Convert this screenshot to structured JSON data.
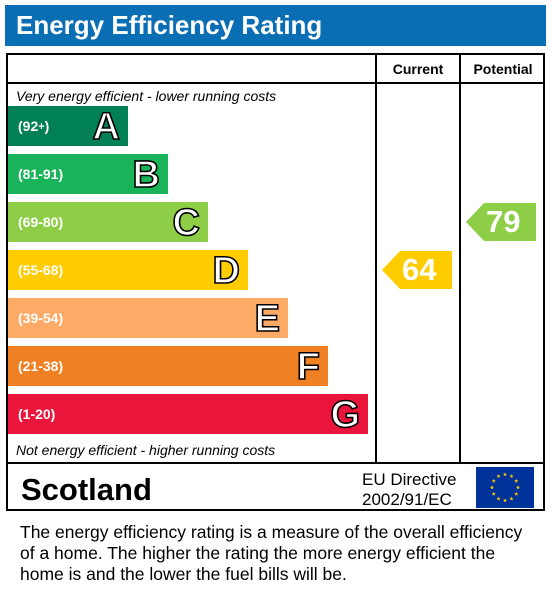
{
  "chart_data": {
    "type": "bar",
    "title": "Energy Efficiency Rating",
    "columns": [
      "Current",
      "Potential"
    ],
    "top_caption": "Very energy efficient - lower running costs",
    "bottom_caption": "Not energy efficient - higher running costs",
    "bands": [
      {
        "letter": "A",
        "range": "(92+)",
        "color": "#008054"
      },
      {
        "letter": "B",
        "range": "(81-91)",
        "color": "#19b459"
      },
      {
        "letter": "C",
        "range": "(69-80)",
        "color": "#8dce46"
      },
      {
        "letter": "D",
        "range": "(55-68)",
        "color": "#ffcc00"
      },
      {
        "letter": "E",
        "range": "(39-54)",
        "color": "#fcaa65"
      },
      {
        "letter": "F",
        "range": "(21-38)",
        "color": "#ef8023"
      },
      {
        "letter": "G",
        "range": "(1-20)",
        "color": "#e9153b"
      }
    ],
    "current": {
      "value": 64,
      "band": "D",
      "color": "#ffcc00"
    },
    "potential": {
      "value": 79,
      "band": "C",
      "color": "#8dce46"
    }
  },
  "footer": {
    "region": "Scotland",
    "directive_line1": "EU Directive",
    "directive_line2": "2002/91/EC",
    "flag_icon": "eu-flag-icon"
  },
  "description": "The energy efficiency rating is a measure of the overall efficiency of a home.  The higher the rating the more energy efficient the home is and the lower the fuel bills will be."
}
